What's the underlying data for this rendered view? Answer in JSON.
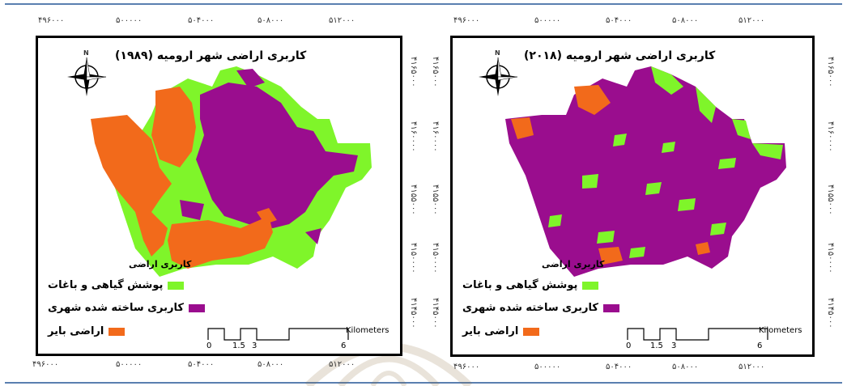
{
  "colors": {
    "vegetation": "#7ff52a",
    "urban": "#9a0d8e",
    "barren": "#f26a1b",
    "frame_blue": "#5a7fb0"
  },
  "maps": [
    {
      "title": "کاربری اراضی شهر ارومیه (۱۹۸۹)",
      "legend_title": "کاربری اراضی",
      "legend": [
        {
          "label": "پوشش گیاهی و باغات",
          "color": "#7ff52a"
        },
        {
          "label": "کاربری ساخته شده شهری",
          "color": "#9a0d8e"
        },
        {
          "label": "اراضی بایر",
          "color": "#f26a1b"
        }
      ],
      "scale": {
        "unit": "Kilometers",
        "labels": [
          "0",
          "1.5",
          "3",
          "6"
        ]
      },
      "x_ticks_top": [
        "۴۹۶۰۰۰",
        "۵۰۰۰۰۰",
        "۵۰۴۰۰۰",
        "۵۰۸۰۰۰",
        "۵۱۲۰۰۰"
      ],
      "x_ticks_bottom": [
        "۴۹۶۰۰۰",
        "۵۰۰۰۰۰",
        "۵۰۴۰۰۰",
        "۵۰۸۰۰۰",
        "۵۱۲۰۰۰"
      ],
      "y_ticks_right": [
        "۴۱۶۵۰۰۰",
        "۴۱۶۰۰۰۰",
        "۴۱۵۵۰۰۰",
        "۴۱۵۰۰۰۰",
        "۴۱۴۵۰۰۰"
      ],
      "compass_label": "N"
    },
    {
      "title": "کاربری اراضی شهر ارومیه (۲۰۱۸)",
      "legend_title": "کاربری اراضی",
      "legend": [
        {
          "label": "پوشش گیاهی و باغات",
          "color": "#7ff52a"
        },
        {
          "label": "کاربری ساخته شده شهری",
          "color": "#9a0d8e"
        },
        {
          "label": "اراضی بایر",
          "color": "#f26a1b"
        }
      ],
      "scale": {
        "unit": "Kilometers",
        "labels": [
          "0",
          "1.5",
          "3",
          "6"
        ]
      },
      "x_ticks_top": [
        "۴۹۶۰۰۰",
        "۵۰۰۰۰۰",
        "۵۰۴۰۰۰",
        "۵۰۸۰۰۰",
        "۵۱۲۰۰۰"
      ],
      "x_ticks_bottom": [
        "۴۹۶۰۰۰",
        "۵۰۰۰۰۰",
        "۵۰۴۰۰۰",
        "۵۰۸۰۰۰",
        "۵۱۲۰۰۰"
      ],
      "y_ticks_left": [
        "۴۱۶۵۰۰۰",
        "۴۱۶۰۰۰۰",
        "۴۱۵۵۰۰۰",
        "۴۱۵۰۰۰۰",
        "۴۱۴۵۰۰۰"
      ],
      "y_ticks_right": [
        "۴۱۶۵۰۰۰",
        "۴۱۶۰۰۰۰",
        "۴۱۵۵۰۰۰",
        "۴۱۵۰۰۰۰",
        "۴۱۴۵۰۰۰"
      ],
      "compass_label": "N"
    }
  ]
}
